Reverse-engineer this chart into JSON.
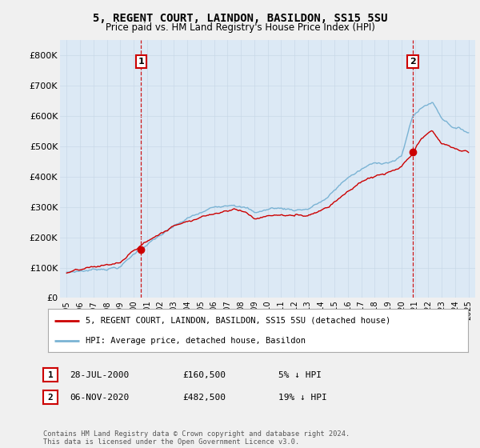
{
  "title": "5, REGENT COURT, LAINDON, BASILDON, SS15 5SU",
  "subtitle": "Price paid vs. HM Land Registry's House Price Index (HPI)",
  "xlim_start": 1994.5,
  "xlim_end": 2025.5,
  "ylim": [
    0,
    850000
  ],
  "yticks": [
    0,
    100000,
    200000,
    300000,
    400000,
    500000,
    600000,
    700000,
    800000
  ],
  "ytick_labels": [
    "£0",
    "£100K",
    "£200K",
    "£300K",
    "£400K",
    "£500K",
    "£600K",
    "£700K",
    "£800K"
  ],
  "hpi_color": "#7ab3d4",
  "price_color": "#cc0000",
  "vline_color": "#cc0000",
  "plot_bg_color": "#dce9f5",
  "background_color": "#f0f0f0",
  "marker1_date": 2000.55,
  "marker1_price": 160500,
  "marker2_date": 2020.84,
  "marker2_price": 482500,
  "legend_label_price": "5, REGENT COURT, LAINDON, BASILDON, SS15 5SU (detached house)",
  "legend_label_hpi": "HPI: Average price, detached house, Basildon",
  "table_row1": [
    "1",
    "28-JUL-2000",
    "£160,500",
    "5% ↓ HPI"
  ],
  "table_row2": [
    "2",
    "06-NOV-2020",
    "£482,500",
    "19% ↓ HPI"
  ],
  "footer": "Contains HM Land Registry data © Crown copyright and database right 2024.\nThis data is licensed under the Open Government Licence v3.0.",
  "xticks": [
    1995,
    1996,
    1997,
    1998,
    1999,
    2000,
    2001,
    2002,
    2003,
    2004,
    2005,
    2006,
    2007,
    2008,
    2009,
    2010,
    2011,
    2012,
    2013,
    2014,
    2015,
    2016,
    2017,
    2018,
    2019,
    2020,
    2021,
    2022,
    2023,
    2024,
    2025
  ]
}
